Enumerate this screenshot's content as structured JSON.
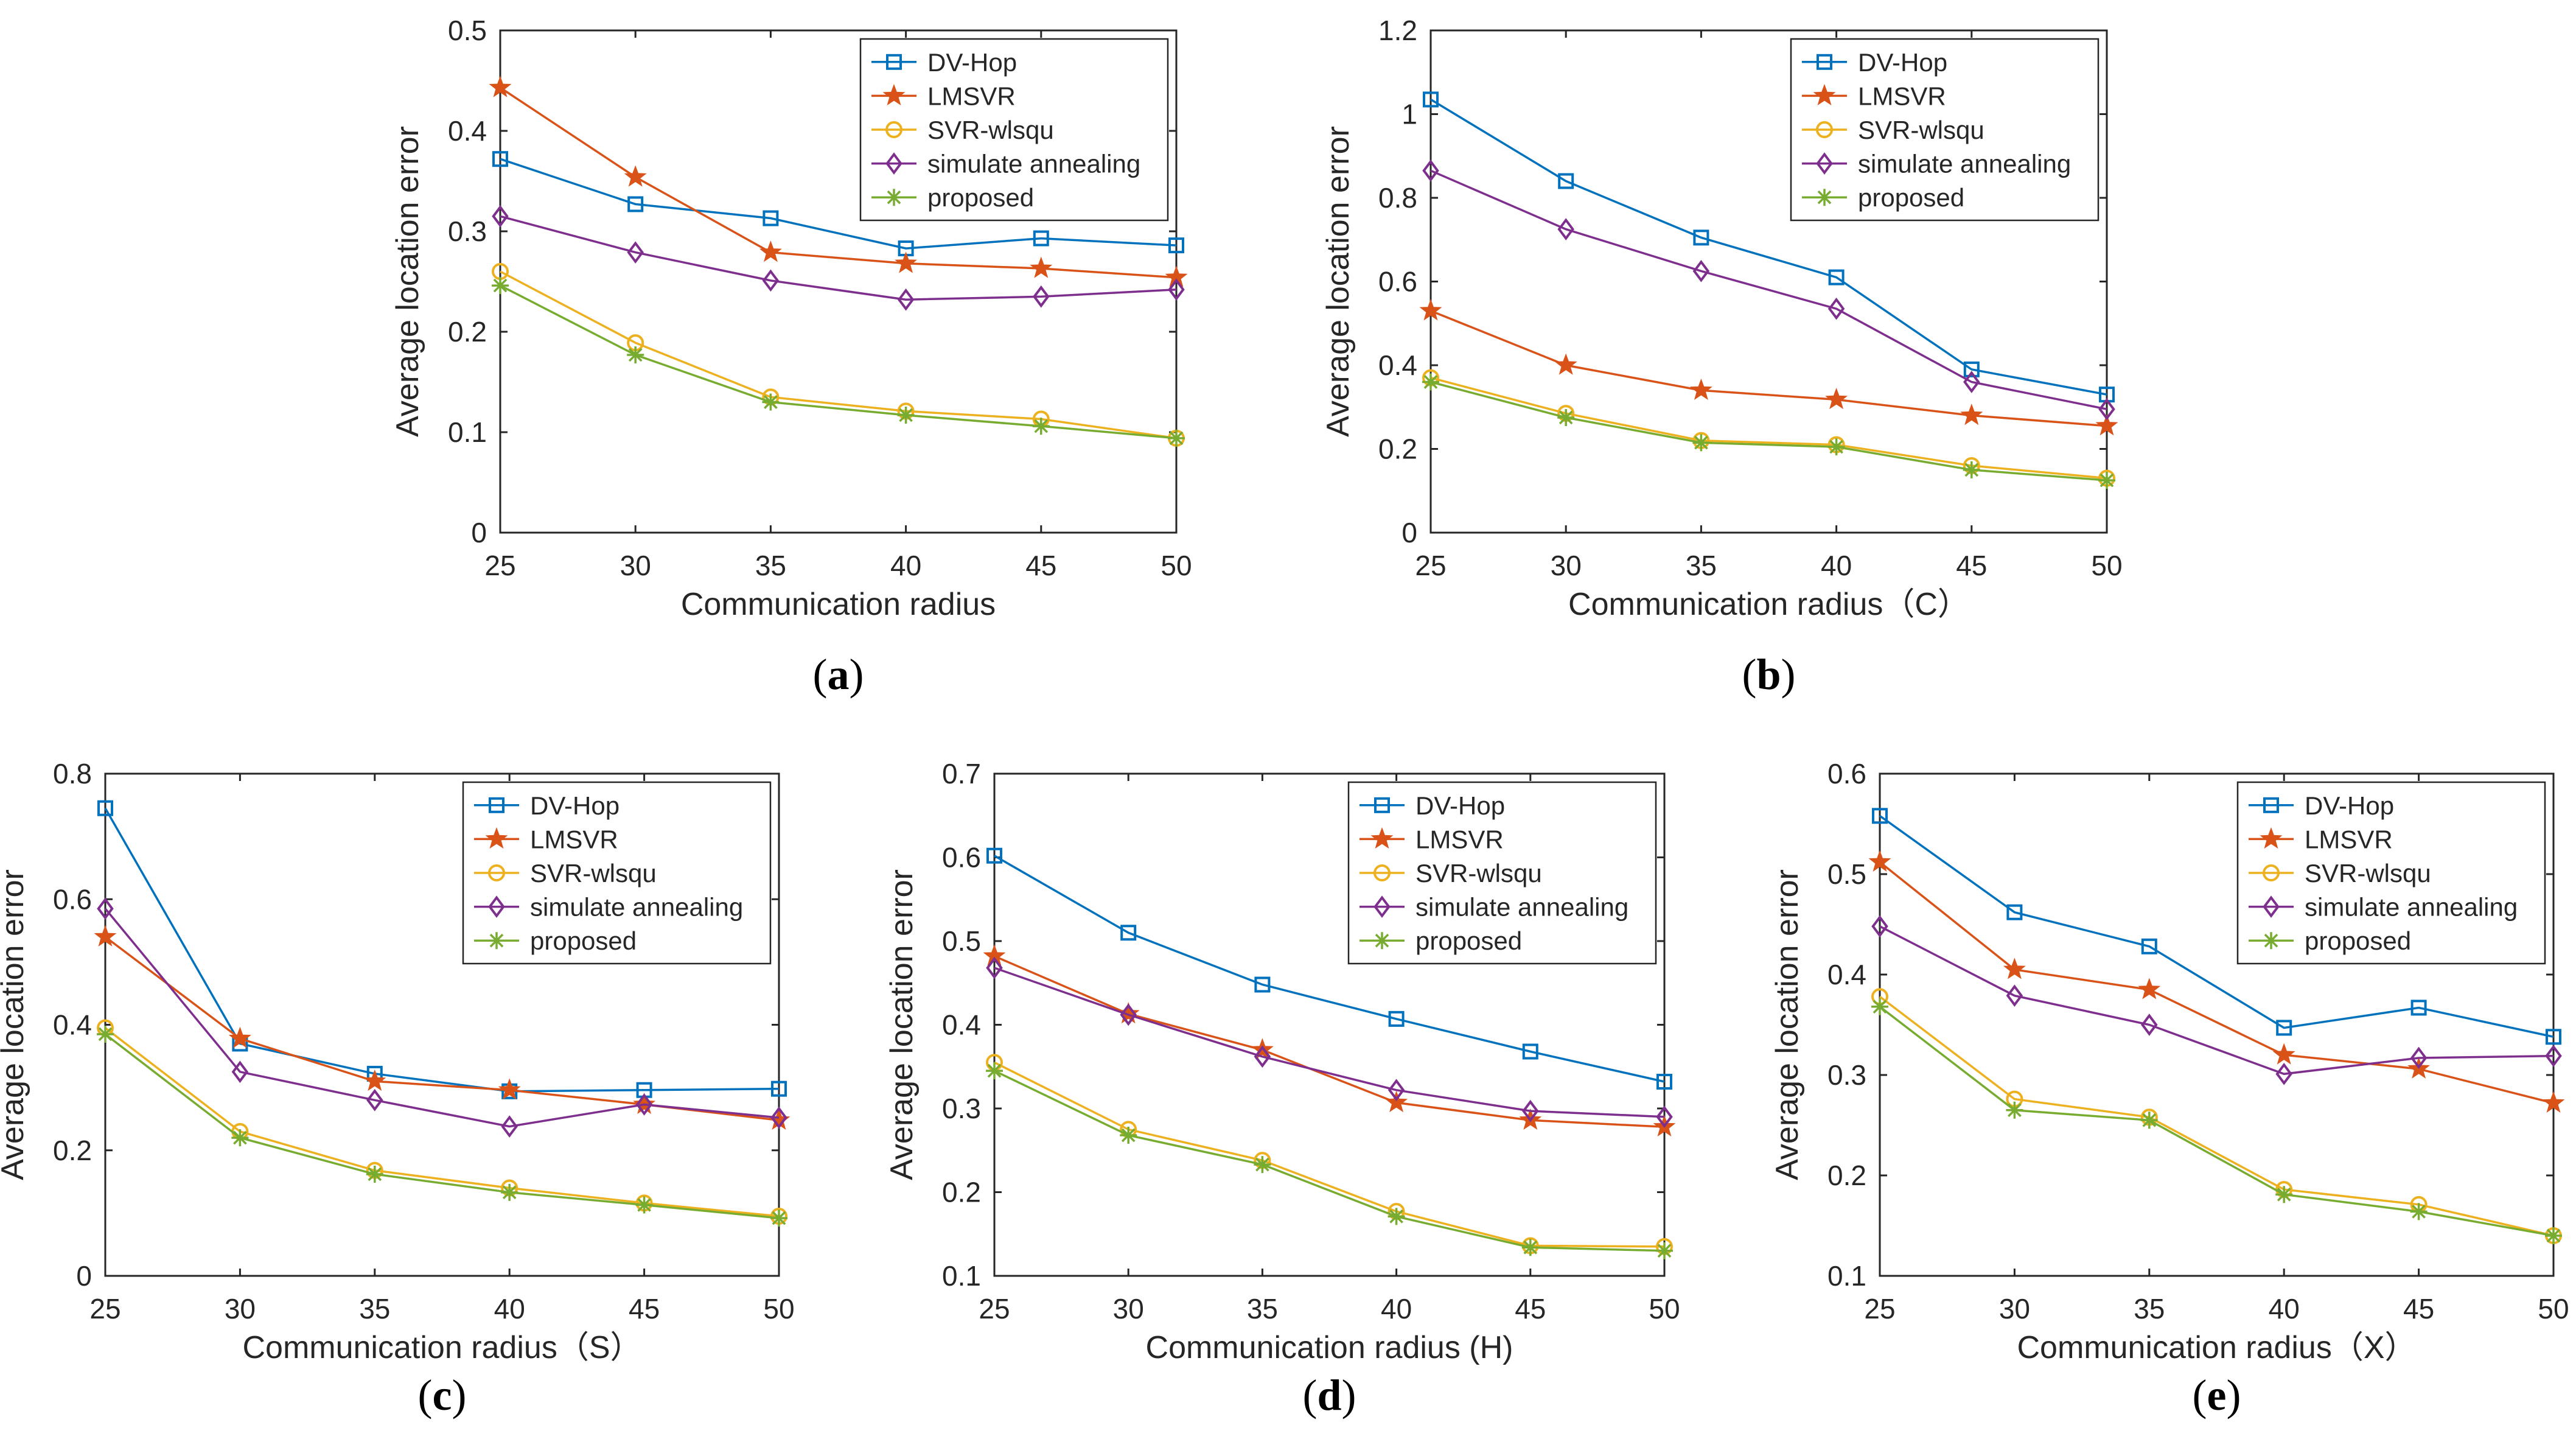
{
  "series_colors": {
    "DV-Hop": "#0072BD",
    "LMSVR": "#D95319",
    "SVR-wlsqu": "#EDB120",
    "simulate annealing": "#7E2F8E",
    "proposed": "#77AC30"
  },
  "chart_data": [
    {
      "id": "a",
      "type": "line",
      "panel_label": "a",
      "xlabel": "Communication radius",
      "ylabel": "Average location error",
      "categories": [
        25,
        30,
        35,
        40,
        45,
        50
      ],
      "xlim": [
        25,
        50
      ],
      "ylim": [
        0,
        0.5
      ],
      "xticks": [
        "25",
        "30",
        "35",
        "40",
        "45",
        "50"
      ],
      "yticks": [
        "0",
        "0.1",
        "0.2",
        "0.3",
        "0.4",
        "0.5"
      ],
      "ytick_values": [
        0,
        0.1,
        0.2,
        0.3,
        0.4,
        0.5
      ],
      "legend_position": "top-right",
      "series": [
        {
          "name": "DV-Hop",
          "marker": "square",
          "values": [
            0.372,
            0.327,
            0.313,
            0.283,
            0.293,
            0.286
          ]
        },
        {
          "name": "LMSVR",
          "marker": "star",
          "values": [
            0.443,
            0.354,
            0.279,
            0.268,
            0.263,
            0.254
          ]
        },
        {
          "name": "SVR-wlsqu",
          "marker": "circle",
          "values": [
            0.26,
            0.189,
            0.135,
            0.121,
            0.113,
            0.094
          ]
        },
        {
          "name": "simulate annealing",
          "marker": "diamond",
          "values": [
            0.315,
            0.279,
            0.251,
            0.232,
            0.235,
            0.242
          ]
        },
        {
          "name": "proposed",
          "marker": "asterisk",
          "values": [
            0.246,
            0.177,
            0.13,
            0.117,
            0.106,
            0.094
          ]
        }
      ]
    },
    {
      "id": "b",
      "type": "line",
      "panel_label": "b",
      "xlabel": "Communication radius（C）",
      "ylabel": "Average location error",
      "categories": [
        25,
        30,
        35,
        40,
        45,
        50
      ],
      "xlim": [
        25,
        50
      ],
      "ylim": [
        0,
        1.2
      ],
      "xticks": [
        "25",
        "30",
        "35",
        "40",
        "45",
        "50"
      ],
      "yticks": [
        "0",
        "0.2",
        "0.4",
        "0.6",
        "0.8",
        "1",
        "1.2"
      ],
      "ytick_values": [
        0,
        0.2,
        0.4,
        0.6,
        0.8,
        1.0,
        1.2
      ],
      "legend_position": "top-right",
      "series": [
        {
          "name": "DV-Hop",
          "marker": "square",
          "values": [
            1.035,
            0.84,
            0.705,
            0.61,
            0.39,
            0.33
          ]
        },
        {
          "name": "LMSVR",
          "marker": "star",
          "values": [
            0.53,
            0.4,
            0.34,
            0.318,
            0.28,
            0.255
          ]
        },
        {
          "name": "SVR-wlsqu",
          "marker": "circle",
          "values": [
            0.37,
            0.285,
            0.22,
            0.21,
            0.16,
            0.13
          ]
        },
        {
          "name": "simulate annealing",
          "marker": "diamond",
          "values": [
            0.865,
            0.725,
            0.625,
            0.535,
            0.36,
            0.295
          ]
        },
        {
          "name": "proposed",
          "marker": "asterisk",
          "values": [
            0.36,
            0.275,
            0.215,
            0.205,
            0.15,
            0.125
          ]
        }
      ]
    },
    {
      "id": "c",
      "type": "line",
      "panel_label": "c",
      "xlabel": "Communication radius（S）",
      "ylabel": "Average location error",
      "categories": [
        25,
        30,
        35,
        40,
        45,
        50
      ],
      "xlim": [
        25,
        50
      ],
      "ylim": [
        0,
        0.8
      ],
      "xticks": [
        "25",
        "30",
        "35",
        "40",
        "45",
        "50"
      ],
      "yticks": [
        "0",
        "0.2",
        "0.4",
        "0.6",
        "0.8"
      ],
      "ytick_values": [
        0,
        0.2,
        0.4,
        0.6,
        0.8
      ],
      "legend_position": "top-right",
      "series": [
        {
          "name": "DV-Hop",
          "marker": "square",
          "values": [
            0.745,
            0.37,
            0.322,
            0.294,
            0.296,
            0.298
          ]
        },
        {
          "name": "LMSVR",
          "marker": "star",
          "values": [
            0.54,
            0.378,
            0.31,
            0.296,
            0.273,
            0.248
          ]
        },
        {
          "name": "SVR-wlsqu",
          "marker": "circle",
          "values": [
            0.395,
            0.23,
            0.168,
            0.14,
            0.116,
            0.095
          ]
        },
        {
          "name": "simulate annealing",
          "marker": "diamond",
          "values": [
            0.585,
            0.325,
            0.28,
            0.238,
            0.273,
            0.252
          ]
        },
        {
          "name": "proposed",
          "marker": "asterisk",
          "values": [
            0.385,
            0.22,
            0.162,
            0.133,
            0.113,
            0.092
          ]
        }
      ]
    },
    {
      "id": "d",
      "type": "line",
      "panel_label": "d",
      "xlabel": "Communication radius (H)",
      "ylabel": "Average location error",
      "categories": [
        25,
        30,
        35,
        40,
        45,
        50
      ],
      "xlim": [
        25,
        50
      ],
      "ylim": [
        0.1,
        0.7
      ],
      "xticks": [
        "25",
        "30",
        "35",
        "40",
        "45",
        "50"
      ],
      "yticks": [
        "0.1",
        "0.2",
        "0.3",
        "0.4",
        "0.5",
        "0.6",
        "0.7"
      ],
      "ytick_values": [
        0.1,
        0.2,
        0.3,
        0.4,
        0.5,
        0.6,
        0.7
      ],
      "legend_position": "top-right",
      "series": [
        {
          "name": "DV-Hop",
          "marker": "square",
          "values": [
            0.602,
            0.51,
            0.448,
            0.407,
            0.368,
            0.332
          ]
        },
        {
          "name": "LMSVR",
          "marker": "star",
          "values": [
            0.482,
            0.413,
            0.37,
            0.307,
            0.286,
            0.278
          ]
        },
        {
          "name": "SVR-wlsqu",
          "marker": "circle",
          "values": [
            0.355,
            0.275,
            0.238,
            0.177,
            0.136,
            0.135
          ]
        },
        {
          "name": "simulate annealing",
          "marker": "diamond",
          "values": [
            0.468,
            0.412,
            0.362,
            0.322,
            0.297,
            0.29
          ]
        },
        {
          "name": "proposed",
          "marker": "asterisk",
          "values": [
            0.345,
            0.268,
            0.233,
            0.171,
            0.134,
            0.13
          ]
        }
      ]
    },
    {
      "id": "e",
      "type": "line",
      "panel_label": "e",
      "xlabel": "Communication radius（X）",
      "ylabel": "Average location error",
      "categories": [
        25,
        30,
        35,
        40,
        45,
        50
      ],
      "xlim": [
        25,
        50
      ],
      "ylim": [
        0.1,
        0.6
      ],
      "xticks": [
        "25",
        "30",
        "35",
        "40",
        "45",
        "50"
      ],
      "yticks": [
        "0.1",
        "0.2",
        "0.3",
        "0.4",
        "0.5",
        "0.6"
      ],
      "ytick_values": [
        0.1,
        0.2,
        0.3,
        0.4,
        0.5,
        0.6
      ],
      "legend_position": "top-right",
      "series": [
        {
          "name": "DV-Hop",
          "marker": "square",
          "values": [
            0.558,
            0.462,
            0.428,
            0.347,
            0.367,
            0.338
          ]
        },
        {
          "name": "LMSVR",
          "marker": "star",
          "values": [
            0.512,
            0.405,
            0.385,
            0.32,
            0.306,
            0.272
          ]
        },
        {
          "name": "SVR-wlsqu",
          "marker": "circle",
          "values": [
            0.378,
            0.276,
            0.258,
            0.186,
            0.171,
            0.14
          ]
        },
        {
          "name": "simulate annealing",
          "marker": "diamond",
          "values": [
            0.448,
            0.379,
            0.35,
            0.301,
            0.317,
            0.319
          ]
        },
        {
          "name": "proposed",
          "marker": "asterisk",
          "values": [
            0.368,
            0.265,
            0.255,
            0.181,
            0.164,
            0.14
          ]
        }
      ]
    }
  ]
}
